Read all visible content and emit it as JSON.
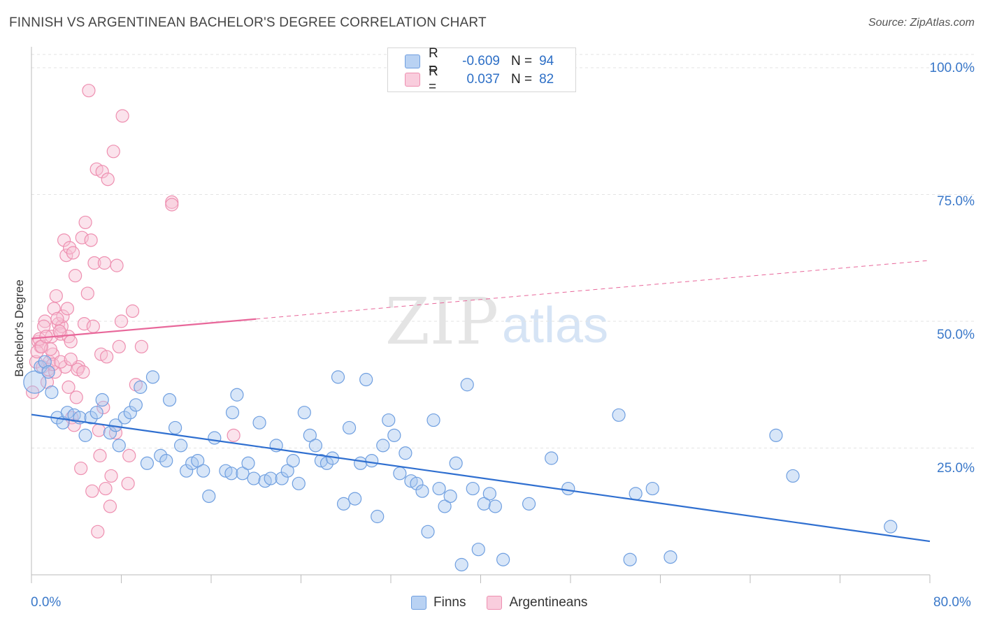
{
  "title": "FINNISH VS ARGENTINEAN BACHELOR'S DEGREE CORRELATION CHART",
  "source": "Source: ZipAtlas.com",
  "legend": {
    "finns": {
      "r_label": "R =",
      "r_value": "-0.609",
      "n_label": "N =",
      "n_value": "94"
    },
    "argentineans": {
      "r_label": "R =",
      "r_value": "0.037",
      "n_label": "N =",
      "n_value": "82"
    }
  },
  "bottom_legend": {
    "finns": "Finns",
    "argentineans": "Argentineans"
  },
  "watermark": {
    "zip": "ZIP",
    "atlas": "atlas"
  },
  "colors": {
    "finns": "#6f9fe0",
    "finns_fill": "#a9c7f0",
    "finns_line": "#2f6fd0",
    "argentineans": "#ee8fb0",
    "argentineans_fill": "#f6c2d4",
    "argentineans_line": "#e8679a",
    "tick_text": "#3a78c9",
    "grid": "#e3e3e3"
  },
  "chart_data": {
    "type": "scatter",
    "title": "FINNISH VS ARGENTINEAN BACHELOR'S DEGREE CORRELATION CHART",
    "xlabel": "",
    "ylabel": "Bachelor's Degree",
    "xlim": [
      0,
      80
    ],
    "ylim": [
      0,
      100
    ],
    "x_tick_labels": [
      "0.0%",
      "80.0%"
    ],
    "y_tick_labels": [
      "100.0%",
      "75.0%",
      "50.0%",
      "25.0%"
    ],
    "y_ticks": [
      100,
      75,
      50,
      25
    ],
    "series": [
      {
        "name": "Finns",
        "r": -0.609,
        "n": 94,
        "trend": {
          "x0": 0,
          "y0": 31.6,
          "x1": 80,
          "y1": 6.6,
          "style": "solid"
        },
        "points": [
          [
            0.3,
            38
          ],
          [
            0.8,
            41
          ],
          [
            1.2,
            42
          ],
          [
            1.5,
            40
          ],
          [
            1.8,
            36
          ],
          [
            2.3,
            31
          ],
          [
            2.8,
            30
          ],
          [
            3.2,
            32
          ],
          [
            3.8,
            31.5
          ],
          [
            4.3,
            31
          ],
          [
            4.8,
            27.5
          ],
          [
            5.3,
            31
          ],
          [
            5.8,
            32
          ],
          [
            6.3,
            34.5
          ],
          [
            7.0,
            28
          ],
          [
            7.5,
            29.5
          ],
          [
            7.8,
            25.5
          ],
          [
            8.3,
            31
          ],
          [
            8.8,
            32
          ],
          [
            9.3,
            33.5
          ],
          [
            9.7,
            37
          ],
          [
            10.3,
            22
          ],
          [
            10.8,
            39
          ],
          [
            11.5,
            23.5
          ],
          [
            12.0,
            22.5
          ],
          [
            12.3,
            34.5
          ],
          [
            12.8,
            29
          ],
          [
            13.3,
            25.5
          ],
          [
            13.8,
            20.5
          ],
          [
            14.3,
            22
          ],
          [
            14.8,
            22.5
          ],
          [
            15.3,
            20.5
          ],
          [
            15.8,
            15.5
          ],
          [
            16.3,
            27
          ],
          [
            17.3,
            20.5
          ],
          [
            17.8,
            20
          ],
          [
            17.9,
            32
          ],
          [
            18.3,
            35.5
          ],
          [
            18.8,
            20
          ],
          [
            19.3,
            22
          ],
          [
            19.8,
            19
          ],
          [
            20.3,
            30
          ],
          [
            20.8,
            18.5
          ],
          [
            21.3,
            19
          ],
          [
            21.8,
            25.5
          ],
          [
            22.3,
            19
          ],
          [
            22.8,
            20.5
          ],
          [
            23.3,
            22.5
          ],
          [
            23.8,
            18
          ],
          [
            24.3,
            32
          ],
          [
            24.8,
            27.5
          ],
          [
            25.3,
            25.5
          ],
          [
            25.8,
            22.5
          ],
          [
            26.3,
            22
          ],
          [
            26.8,
            23
          ],
          [
            27.3,
            39
          ],
          [
            27.8,
            14
          ],
          [
            28.3,
            29
          ],
          [
            28.8,
            15
          ],
          [
            29.3,
            22
          ],
          [
            29.8,
            38.5
          ],
          [
            30.3,
            22.5
          ],
          [
            30.8,
            11.5
          ],
          [
            31.3,
            25.5
          ],
          [
            31.8,
            30.5
          ],
          [
            32.3,
            27.5
          ],
          [
            32.8,
            20
          ],
          [
            33.3,
            24
          ],
          [
            33.8,
            18.5
          ],
          [
            34.3,
            18
          ],
          [
            34.8,
            16.5
          ],
          [
            35.3,
            8.5
          ],
          [
            35.8,
            30.5
          ],
          [
            36.3,
            17
          ],
          [
            36.8,
            13.5
          ],
          [
            37.3,
            15.5
          ],
          [
            37.8,
            22
          ],
          [
            38.3,
            2
          ],
          [
            38.8,
            37.5
          ],
          [
            39.3,
            17
          ],
          [
            39.8,
            5
          ],
          [
            40.3,
            14
          ],
          [
            40.8,
            16
          ],
          [
            41.3,
            13.5
          ],
          [
            42.0,
            3
          ],
          [
            44.3,
            14
          ],
          [
            46.3,
            23
          ],
          [
            47.8,
            17
          ],
          [
            52.3,
            31.5
          ],
          [
            53.3,
            3
          ],
          [
            53.8,
            16
          ],
          [
            55.3,
            17
          ],
          [
            56.9,
            3.5
          ],
          [
            66.3,
            27.5
          ],
          [
            67.8,
            19.5
          ],
          [
            76.5,
            9.5
          ]
        ]
      },
      {
        "name": "Argentineans",
        "r": 0.037,
        "n": 82,
        "trend": {
          "x0": 0,
          "y0": 46.6,
          "x1": 80,
          "y1": 62,
          "solid_until_x": 20,
          "style": "solid-then-dashed"
        },
        "points": [
          [
            0.1,
            36
          ],
          [
            0.4,
            42
          ],
          [
            0.6,
            46
          ],
          [
            0.8,
            45
          ],
          [
            1.0,
            41
          ],
          [
            1.2,
            50
          ],
          [
            1.4,
            38
          ],
          [
            1.6,
            42
          ],
          [
            1.8,
            47
          ],
          [
            1.9,
            43.5
          ],
          [
            2.0,
            52.5
          ],
          [
            2.2,
            55
          ],
          [
            2.4,
            49.5
          ],
          [
            2.6,
            47.5
          ],
          [
            2.7,
            49
          ],
          [
            2.8,
            51
          ],
          [
            2.9,
            66
          ],
          [
            3.0,
            41
          ],
          [
            3.1,
            63
          ],
          [
            3.2,
            52.5
          ],
          [
            3.3,
            47
          ],
          [
            3.4,
            64.5
          ],
          [
            3.5,
            46
          ],
          [
            3.6,
            31
          ],
          [
            3.7,
            63.5
          ],
          [
            3.8,
            29.5
          ],
          [
            3.9,
            59
          ],
          [
            4.0,
            35
          ],
          [
            4.2,
            41
          ],
          [
            4.4,
            21
          ],
          [
            4.5,
            66.5
          ],
          [
            4.7,
            49.5
          ],
          [
            4.8,
            69.5
          ],
          [
            5.0,
            55.5
          ],
          [
            5.1,
            95.5
          ],
          [
            5.3,
            66
          ],
          [
            5.4,
            16.5
          ],
          [
            5.5,
            49
          ],
          [
            5.6,
            61.5
          ],
          [
            5.8,
            80
          ],
          [
            5.9,
            8.5
          ],
          [
            6.0,
            28.5
          ],
          [
            6.1,
            23.5
          ],
          [
            6.2,
            43.5
          ],
          [
            6.3,
            79.5
          ],
          [
            6.4,
            33
          ],
          [
            6.5,
            61.5
          ],
          [
            6.6,
            17
          ],
          [
            6.7,
            43
          ],
          [
            6.8,
            78
          ],
          [
            7.0,
            13.5
          ],
          [
            7.1,
            19.5
          ],
          [
            7.3,
            83.5
          ],
          [
            7.5,
            28
          ],
          [
            7.6,
            61
          ],
          [
            7.8,
            45
          ],
          [
            8.0,
            50
          ],
          [
            8.1,
            90.5
          ],
          [
            8.6,
            18
          ],
          [
            8.7,
            23.5
          ],
          [
            9.0,
            52
          ],
          [
            9.3,
            37.5
          ],
          [
            9.8,
            45
          ],
          [
            12.5,
            73.5
          ],
          [
            12.5,
            73
          ],
          [
            18.0,
            27.5
          ],
          [
            0.5,
            44
          ],
          [
            0.7,
            46.5
          ],
          [
            1.1,
            49
          ],
          [
            1.5,
            40.5
          ],
          [
            1.7,
            44.5
          ],
          [
            2.1,
            40
          ],
          [
            2.5,
            48
          ],
          [
            2.3,
            50.5
          ],
          [
            3.3,
            37
          ],
          [
            4.1,
            40.5
          ],
          [
            4.6,
            40
          ],
          [
            0.9,
            45
          ],
          [
            1.3,
            47
          ],
          [
            1.9,
            41.5
          ],
          [
            2.6,
            42
          ],
          [
            3.5,
            42.5
          ]
        ]
      }
    ]
  }
}
